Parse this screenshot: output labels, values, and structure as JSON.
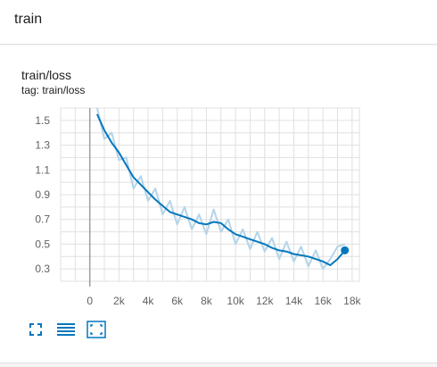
{
  "section": {
    "title": "train"
  },
  "card": {
    "title": "train/loss",
    "tag": "tag: train/loss"
  },
  "toolbar": {
    "icons": [
      "fullscreen-icon",
      "data-table-icon",
      "fit-domain-icon"
    ]
  },
  "colors": {
    "accent": "#0277bd",
    "smoothed_line": "#0277bd",
    "raw_line": "#b3d4ea",
    "grid": "#e0e0e0",
    "axis_text": "#616161"
  },
  "chart_data": {
    "type": "line",
    "title": "",
    "xlabel": "",
    "ylabel": "",
    "xlim": [
      -2000,
      18500
    ],
    "ylim": [
      0.2,
      1.6
    ],
    "x_ticks": [
      0,
      2000,
      4000,
      6000,
      8000,
      10000,
      12000,
      14000,
      16000,
      18000
    ],
    "x_tick_labels": [
      "0",
      "2k",
      "4k",
      "6k",
      "8k",
      "10k",
      "12k",
      "14k",
      "16k",
      "18k"
    ],
    "y_ticks": [
      0.3,
      0.5,
      0.7,
      0.9,
      1.1,
      1.3,
      1.5
    ],
    "y_tick_labels": [
      "0.3",
      "0.5",
      "0.7",
      "0.9",
      "1.1",
      "1.3",
      "1.5"
    ],
    "grid": true,
    "series": [
      {
        "style": "smoothed",
        "x": [
          500,
          1000,
          1500,
          2000,
          2500,
          3000,
          3500,
          4000,
          4500,
          5000,
          5500,
          6000,
          6500,
          7000,
          7500,
          8000,
          8500,
          9000,
          9500,
          10000,
          10500,
          11000,
          11500,
          12000,
          12500,
          13000,
          13500,
          14000,
          14500,
          15000,
          15500,
          16000,
          16500,
          17000,
          17500
        ],
        "y": [
          1.55,
          1.42,
          1.32,
          1.24,
          1.14,
          1.04,
          0.98,
          0.92,
          0.86,
          0.81,
          0.76,
          0.74,
          0.72,
          0.7,
          0.67,
          0.66,
          0.68,
          0.67,
          0.62,
          0.58,
          0.56,
          0.54,
          0.52,
          0.5,
          0.47,
          0.45,
          0.44,
          0.42,
          0.41,
          0.4,
          0.38,
          0.36,
          0.33,
          0.38,
          0.45
        ]
      },
      {
        "style": "raw",
        "x": [
          500,
          1000,
          1500,
          2000,
          2500,
          3000,
          3500,
          4000,
          4500,
          5000,
          5500,
          6000,
          6500,
          7000,
          7500,
          8000,
          8500,
          9000,
          9500,
          10000,
          10500,
          11000,
          11500,
          12000,
          12500,
          13000,
          13500,
          14000,
          14500,
          15000,
          15500,
          16000,
          16500,
          17000,
          17500
        ],
        "y": [
          1.6,
          1.35,
          1.4,
          1.18,
          1.2,
          0.95,
          1.05,
          0.85,
          0.95,
          0.74,
          0.85,
          0.66,
          0.8,
          0.62,
          0.74,
          0.58,
          0.78,
          0.6,
          0.7,
          0.5,
          0.62,
          0.46,
          0.6,
          0.44,
          0.55,
          0.38,
          0.52,
          0.36,
          0.48,
          0.32,
          0.45,
          0.3,
          0.38,
          0.48,
          0.5
        ]
      }
    ],
    "last_point": {
      "x": 17500,
      "y": 0.45
    }
  }
}
